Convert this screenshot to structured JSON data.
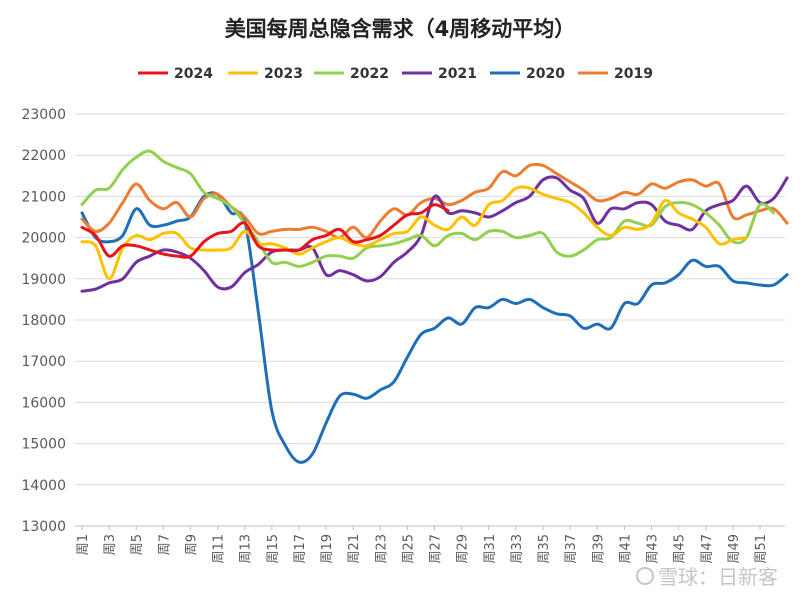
{
  "chart_data": {
    "type": "line",
    "title": "美国每周总隐含需求（4周移动平均）",
    "xlabel": "",
    "ylabel": "",
    "ylim": [
      13000,
      23000
    ],
    "yticks": [
      13000,
      14000,
      15000,
      16000,
      17000,
      18000,
      19000,
      20000,
      21000,
      22000,
      23000
    ],
    "xlim": [
      1,
      53
    ],
    "xticks": [
      1,
      3,
      5,
      7,
      9,
      11,
      13,
      15,
      17,
      19,
      21,
      23,
      25,
      27,
      29,
      31,
      33,
      35,
      37,
      39,
      41,
      43,
      45,
      47,
      49,
      51
    ],
    "xtick_prefix": "周",
    "grid": "horizontal",
    "legend_position": "top",
    "series": [
      {
        "name": "2024",
        "color": "#e8141c",
        "x": [
          1,
          2,
          3,
          4,
          5,
          6,
          7,
          8,
          9,
          10,
          11,
          12,
          13,
          14,
          15,
          16,
          17,
          18,
          19,
          20,
          21,
          22,
          23,
          24,
          25,
          26,
          27,
          28
        ],
        "values": [
          20250,
          20050,
          19550,
          19800,
          19800,
          19700,
          19600,
          19550,
          19550,
          19900,
          20100,
          20150,
          20350,
          19800,
          19700,
          19700,
          19700,
          19950,
          20050,
          20200,
          19900,
          19950,
          20050,
          20300,
          20550,
          20600,
          20800,
          20650
        ]
      },
      {
        "name": "2023",
        "color": "#ffc000",
        "x": [
          1,
          2,
          3,
          4,
          5,
          6,
          7,
          8,
          9,
          10,
          11,
          12,
          13,
          14,
          15,
          16,
          17,
          18,
          19,
          20,
          21,
          22,
          23,
          24,
          25,
          26,
          27,
          28,
          29,
          30,
          31,
          32,
          33,
          34,
          35,
          36,
          37,
          38,
          39,
          40,
          41,
          42,
          43,
          44,
          45,
          46,
          47,
          48,
          49,
          50
        ],
        "values": [
          19900,
          19800,
          19000,
          19750,
          20050,
          19950,
          20100,
          20100,
          19750,
          19700,
          19700,
          19750,
          20150,
          19850,
          19850,
          19750,
          19600,
          19750,
          19900,
          20000,
          19850,
          19800,
          19950,
          20100,
          20150,
          20500,
          20300,
          20200,
          20500,
          20300,
          20800,
          20900,
          21200,
          21200,
          21050,
          20950,
          20850,
          20600,
          20250,
          20050,
          20250,
          20200,
          20350,
          20900,
          20600,
          20450,
          20250,
          19850,
          19950,
          20000
        ]
      },
      {
        "name": "2022",
        "color": "#92d050",
        "x": [
          1,
          2,
          3,
          4,
          5,
          6,
          7,
          8,
          9,
          10,
          11,
          12,
          13,
          14,
          15,
          16,
          17,
          18,
          19,
          20,
          21,
          22,
          23,
          24,
          25,
          26,
          27,
          28,
          29,
          30,
          31,
          32,
          33,
          34,
          35,
          36,
          37,
          38,
          39,
          40,
          41,
          42,
          43,
          44,
          45,
          46,
          47,
          48,
          49,
          50,
          51,
          52
        ],
        "values": [
          20800,
          21150,
          21200,
          21650,
          21950,
          22100,
          21850,
          21700,
          21550,
          21100,
          20950,
          20750,
          20350,
          19900,
          19400,
          19400,
          19300,
          19400,
          19550,
          19550,
          19500,
          19750,
          19800,
          19850,
          19950,
          20050,
          19800,
          20050,
          20100,
          19950,
          20150,
          20150,
          20000,
          20050,
          20100,
          19650,
          19550,
          19700,
          19950,
          20000,
          20400,
          20350,
          20300,
          20750,
          20850,
          20800,
          20600,
          20300,
          19900,
          20000,
          20800,
          20600
        ]
      },
      {
        "name": "2021",
        "color": "#7030a0",
        "x": [
          1,
          2,
          3,
          4,
          5,
          6,
          7,
          8,
          9,
          10,
          11,
          12,
          13,
          14,
          15,
          16,
          17,
          18,
          19,
          20,
          21,
          22,
          23,
          24,
          25,
          26,
          27,
          28,
          29,
          30,
          31,
          32,
          33,
          34,
          35,
          36,
          37,
          38,
          39,
          40,
          41,
          42,
          43,
          44,
          45,
          46,
          47,
          48,
          49,
          50,
          51,
          52,
          53
        ],
        "values": [
          18700,
          18750,
          18900,
          19000,
          19400,
          19550,
          19700,
          19650,
          19500,
          19200,
          18800,
          18800,
          19150,
          19350,
          19650,
          19700,
          19700,
          19750,
          19100,
          19200,
          19100,
          18950,
          19050,
          19400,
          19650,
          20050,
          21000,
          20600,
          20650,
          20600,
          20500,
          20650,
          20850,
          21000,
          21400,
          21450,
          21150,
          20950,
          20350,
          20700,
          20700,
          20850,
          20800,
          20400,
          20300,
          20200,
          20650,
          20800,
          20900,
          21250,
          20850,
          20950,
          21450
        ]
      },
      {
        "name": "2020",
        "color": "#1f6eb8",
        "x": [
          1,
          2,
          3,
          4,
          5,
          6,
          7,
          8,
          9,
          10,
          11,
          12,
          13,
          14,
          15,
          16,
          17,
          18,
          19,
          20,
          21,
          22,
          23,
          24,
          25,
          26,
          27,
          28,
          29,
          30,
          31,
          32,
          33,
          34,
          35,
          36,
          37,
          38,
          39,
          40,
          41,
          42,
          43,
          44,
          45,
          46,
          47,
          48,
          49,
          50,
          51,
          52,
          53
        ],
        "values": [
          20600,
          20000,
          19900,
          20050,
          20700,
          20300,
          20300,
          20400,
          20500,
          21000,
          21050,
          20600,
          20400,
          18200,
          15800,
          14950,
          14550,
          14750,
          15500,
          16150,
          16200,
          16100,
          16300,
          16500,
          17100,
          17650,
          17800,
          18050,
          17900,
          18300,
          18300,
          18500,
          18400,
          18500,
          18300,
          18150,
          18100,
          17800,
          17900,
          17800,
          18400,
          18400,
          18850,
          18900,
          19100,
          19450,
          19300,
          19300,
          18950,
          18900,
          18850,
          18850,
          19100
        ]
      },
      {
        "name": "2019",
        "color": "#ed7d31",
        "x": [
          1,
          2,
          3,
          4,
          5,
          6,
          7,
          8,
          9,
          10,
          11,
          12,
          13,
          14,
          15,
          16,
          17,
          18,
          19,
          20,
          21,
          22,
          23,
          24,
          25,
          26,
          27,
          28,
          29,
          30,
          31,
          32,
          33,
          34,
          35,
          36,
          37,
          38,
          39,
          40,
          41,
          42,
          43,
          44,
          45,
          46,
          47,
          48,
          49,
          50,
          51,
          52,
          53
        ],
        "values": [
          20450,
          20150,
          20350,
          20850,
          21300,
          20900,
          20700,
          20850,
          20500,
          20950,
          21050,
          20750,
          20500,
          20100,
          20150,
          20200,
          20200,
          20250,
          20150,
          20000,
          20250,
          20000,
          20400,
          20700,
          20550,
          20850,
          20950,
          20800,
          20900,
          21100,
          21200,
          21600,
          21500,
          21750,
          21750,
          21550,
          21350,
          21150,
          20900,
          20950,
          21100,
          21050,
          21300,
          21200,
          21350,
          21400,
          21250,
          21300,
          20500,
          20550,
          20650,
          20700,
          20350
        ]
      }
    ]
  },
  "watermark": "雪球：日新客"
}
